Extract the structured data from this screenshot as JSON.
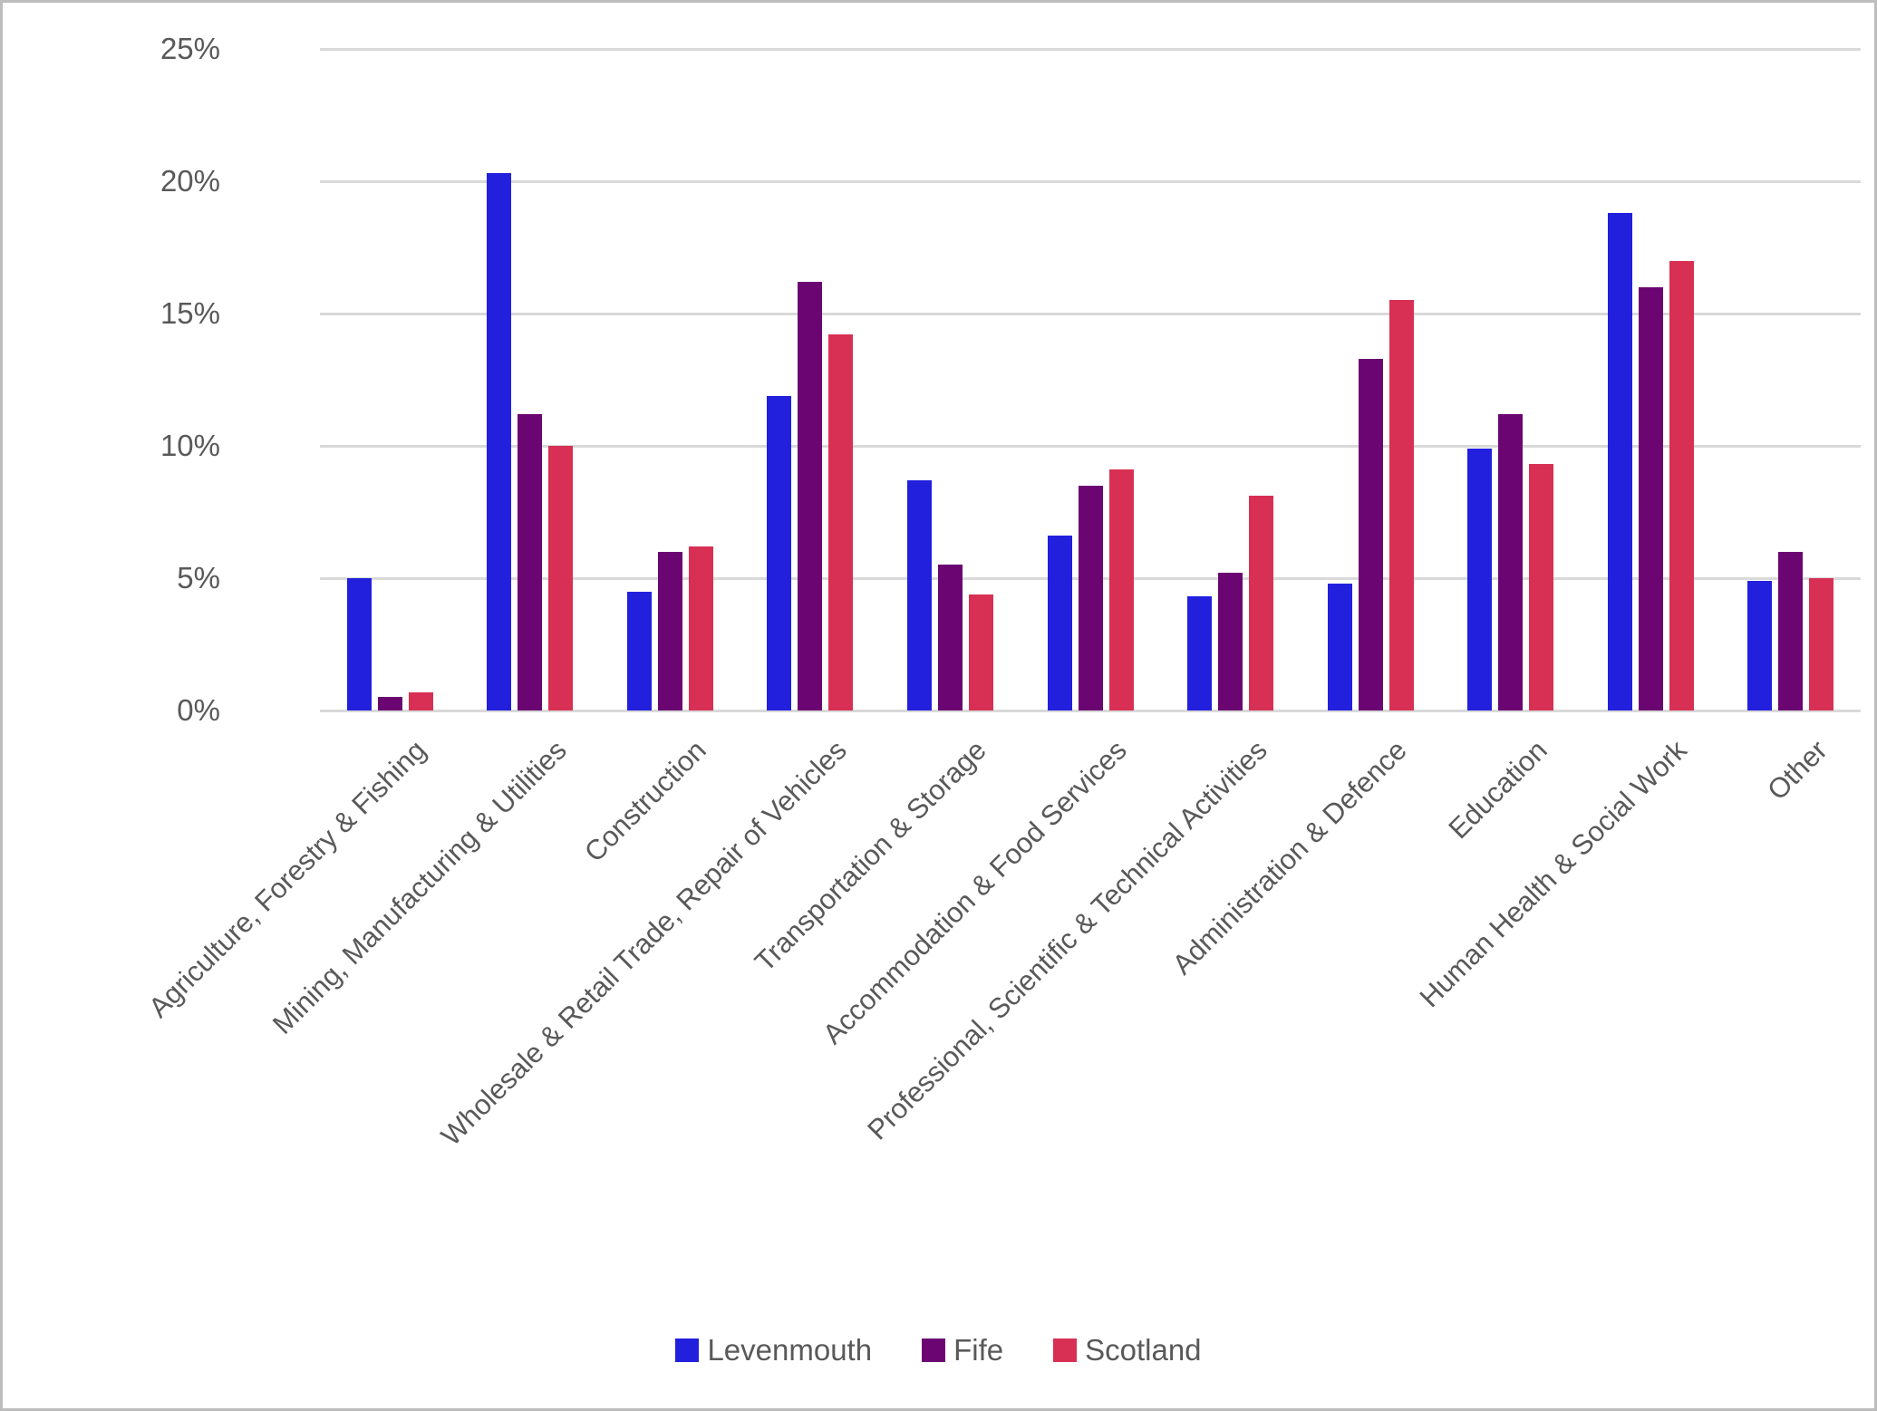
{
  "chart": {
    "background": "#ffffff",
    "border_color": "#bdbdbd",
    "gridline_color": "#d9d9d9",
    "text_color": "#595959",
    "y_axis_ticks": [
      "0%",
      "5%",
      "10%",
      "15%",
      "20%",
      "25%"
    ]
  },
  "chart_data": {
    "type": "bar",
    "title": "",
    "xlabel": "",
    "ylabel": "",
    "ylim": [
      0,
      25
    ],
    "y_tick_step": 5,
    "y_tick_suffix": "%",
    "grid": true,
    "legend_position": "bottom",
    "categories": [
      "Agriculture, Forestry & Fishing",
      "Mining, Manufacturing & Utilities",
      "Construction",
      "Wholesale & Retail Trade, Repair of Vehicles",
      "Transportation & Storage",
      "Accommodation & Food Services",
      "Professional, Scientific & Technical Activities",
      "Administration & Defence",
      "Education",
      "Human Health & Social Work",
      "Other"
    ],
    "series": [
      {
        "name": "Levenmouth",
        "color": "#2220dd",
        "values": [
          5.0,
          20.3,
          4.5,
          11.9,
          8.7,
          6.6,
          4.3,
          4.8,
          9.9,
          18.8,
          4.9
        ]
      },
      {
        "name": "Fife",
        "color": "#6b0572",
        "values": [
          0.5,
          11.2,
          6.0,
          16.2,
          5.5,
          8.5,
          5.2,
          13.3,
          11.2,
          16.0,
          6.0
        ]
      },
      {
        "name": "Scotland",
        "color": "#d83054",
        "values": [
          0.7,
          10.0,
          6.2,
          14.2,
          4.4,
          9.1,
          8.1,
          15.5,
          9.3,
          17.0,
          5.0
        ]
      }
    ]
  }
}
